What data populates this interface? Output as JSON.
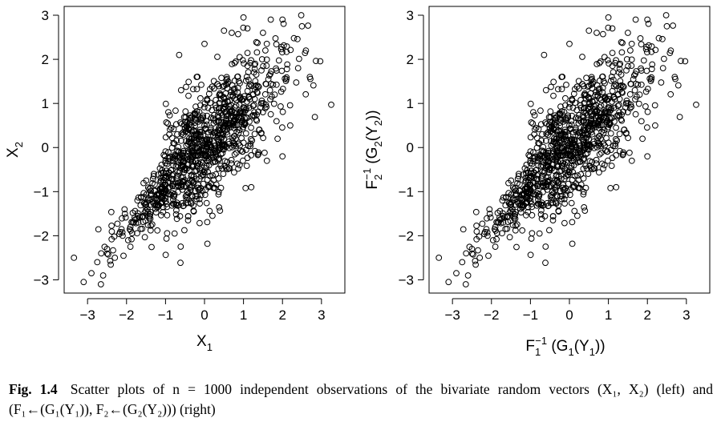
{
  "chart_data": [
    {
      "type": "scatter",
      "panel": "left",
      "xlabel": "X₁",
      "ylabel": "X₂",
      "xlabel_parts": {
        "main": "X",
        "sub": "1"
      },
      "ylabel_parts": {
        "main": "X",
        "sub": "2"
      },
      "xlim": [
        -3.6,
        3.6
      ],
      "ylim": [
        -3.3,
        3.2
      ],
      "x_ticks": [
        "−3",
        "−2",
        "−1",
        "0",
        "1",
        "2",
        "3"
      ],
      "y_ticks": [
        "−3",
        "−2",
        "−1",
        "0",
        "1",
        "2",
        "3"
      ],
      "marker": "open-circle",
      "n_points": 1000,
      "correlation_approx": 0.75,
      "points_sample": [
        [
          -3.35,
          -2.5
        ],
        [
          -3.1,
          -3.05
        ],
        [
          -2.9,
          -2.85
        ],
        [
          -2.75,
          -2.6
        ],
        [
          -2.6,
          -2.9
        ],
        [
          -2.65,
          -2.4
        ],
        [
          -2.5,
          -2.3
        ],
        [
          -2.3,
          -2.5
        ],
        [
          -2.1,
          -2.0
        ],
        [
          -2.05,
          -1.4
        ],
        [
          -1.9,
          -1.8
        ],
        [
          -1.7,
          -1.7
        ],
        [
          -1.5,
          -1.3
        ],
        [
          -1.3,
          -0.6
        ],
        [
          -1.2,
          -1.3
        ],
        [
          -1.0,
          -0.3
        ],
        [
          -0.9,
          -0.9
        ],
        [
          -0.7,
          0.3
        ],
        [
          -0.6,
          -0.4
        ],
        [
          -0.6,
          1.3
        ],
        [
          -0.65,
          2.1
        ],
        [
          -0.4,
          0.4
        ],
        [
          -0.3,
          -0.8
        ],
        [
          -0.2,
          1.6
        ],
        [
          -0.2,
          0.0
        ],
        [
          0.0,
          2.35
        ],
        [
          0.0,
          0.5
        ],
        [
          0.1,
          -0.9
        ],
        [
          0.3,
          0.9
        ],
        [
          0.3,
          -0.2
        ],
        [
          0.5,
          2.65
        ],
        [
          0.5,
          1.4
        ],
        [
          0.7,
          2.6
        ],
        [
          0.8,
          0.2
        ],
        [
          0.9,
          2.05
        ],
        [
          0.9,
          -0.4
        ],
        [
          1.0,
          2.95
        ],
        [
          1.0,
          1.1
        ],
        [
          1.1,
          2.7
        ],
        [
          1.2,
          -0.9
        ],
        [
          1.3,
          1.9
        ],
        [
          1.4,
          0.4
        ],
        [
          1.5,
          2.6
        ],
        [
          1.6,
          -0.3
        ],
        [
          1.7,
          2.9
        ],
        [
          1.8,
          1.2
        ],
        [
          2.0,
          2.9
        ],
        [
          2.0,
          -0.2
        ],
        [
          2.1,
          1.55
        ],
        [
          2.2,
          0.5
        ],
        [
          2.4,
          1.8
        ],
        [
          2.5,
          2.75
        ],
        [
          2.6,
          2.2
        ],
        [
          2.7,
          1.6
        ],
        [
          3.25,
          0.97
        ]
      ]
    },
    {
      "type": "scatter",
      "panel": "right",
      "xlabel": "F₁⁻¹ (G₁(Y₁))",
      "ylabel": "F₂⁻¹ (G₂(Y₂))",
      "xlabel_parts": {
        "f": "F",
        "f_sub": "1",
        "f_sup": "−1",
        "g": "(G",
        "g_sub": "1",
        "y": "(Y",
        "y_sub": "1",
        "close": "))"
      },
      "ylabel_parts": {
        "f": "F",
        "f_sub": "2",
        "f_sup": "−1",
        "g": "(G",
        "g_sub": "2",
        "y": "(Y",
        "y_sub": "2",
        "close": "))"
      },
      "xlim": [
        -3.6,
        3.6
      ],
      "ylim": [
        -3.3,
        3.2
      ],
      "x_ticks": [
        "−3",
        "−2",
        "−1",
        "0",
        "1",
        "2",
        "3"
      ],
      "y_ticks": [
        "−3",
        "−2",
        "−1",
        "0",
        "1",
        "2",
        "3"
      ],
      "marker": "open-circle",
      "n_points": 1000,
      "correlation_approx": 0.75,
      "points_sample": "identical to left panel"
    }
  ],
  "caption": {
    "label": "Fig. 1.4",
    "text": "Scatter plots of n = 1000 independent observations of the bivariate random vectors (X₁, X₂) (left) and (F₁←(G₁(Y₁)), F₂←(G₂(Y₂))) (right)"
  }
}
